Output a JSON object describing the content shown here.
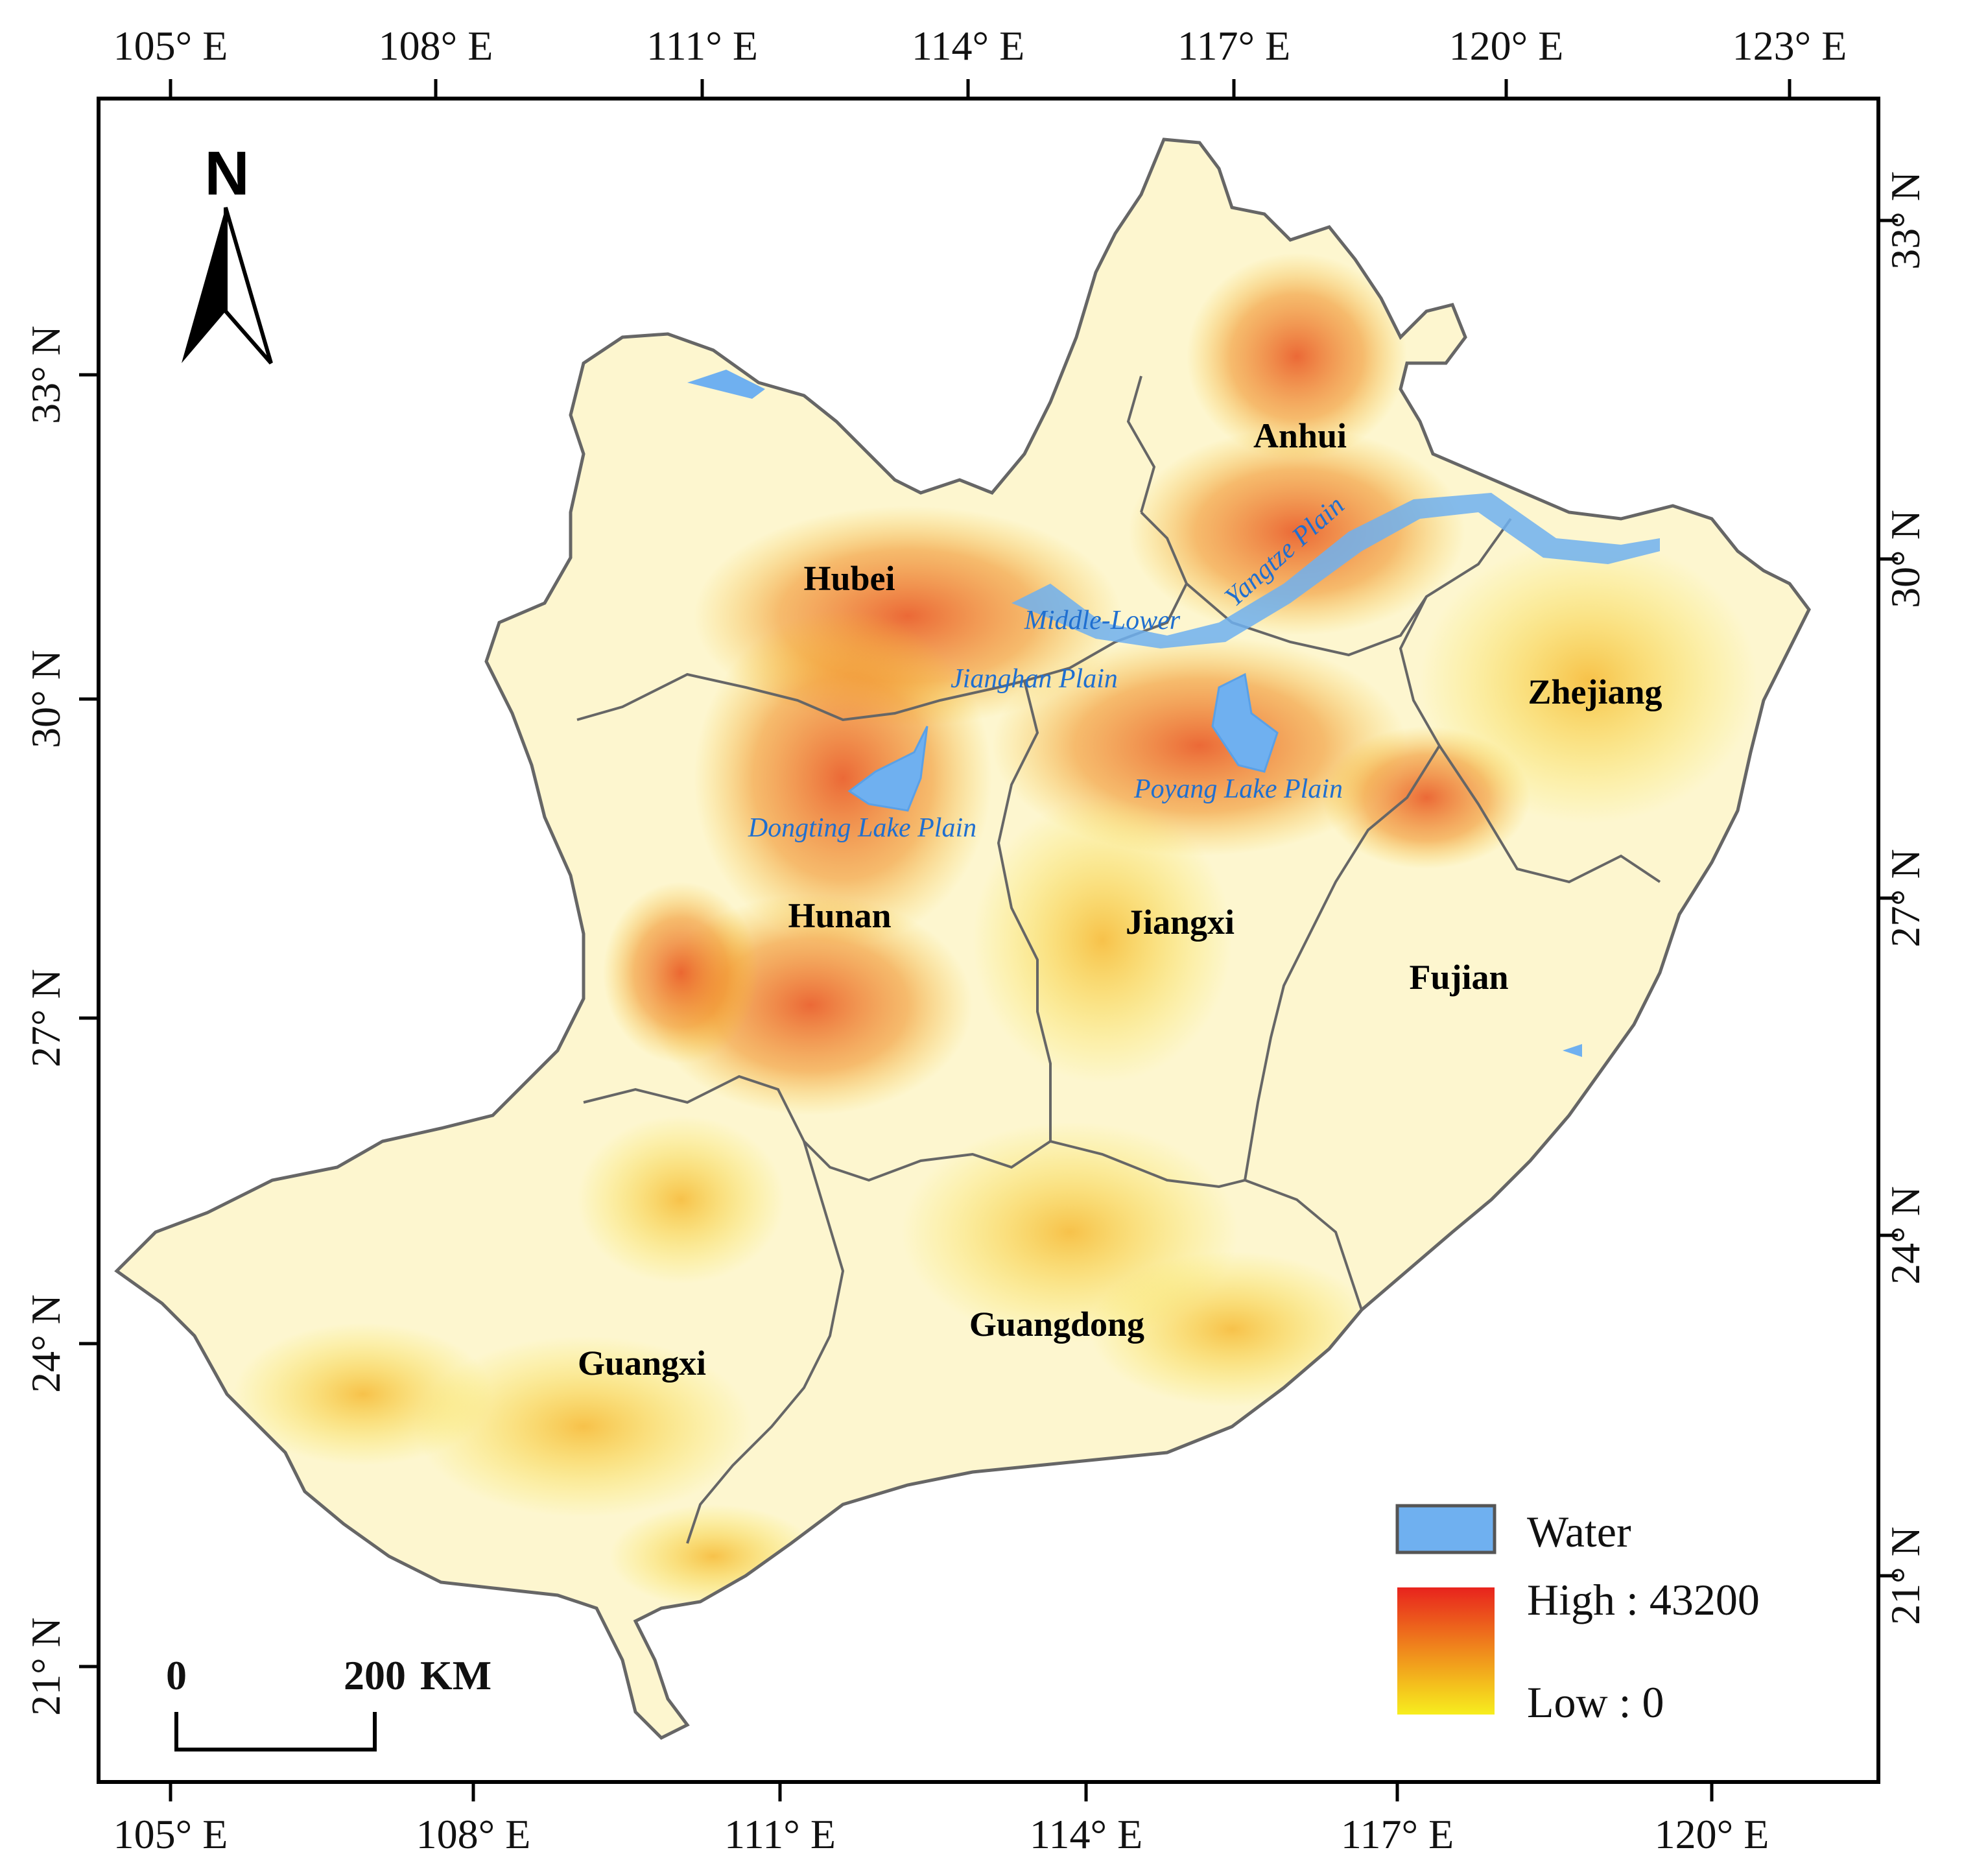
{
  "map": {
    "top_lon_ticks": [
      "105° E",
      "108° E",
      "111° E",
      "114° E",
      "117° E",
      "120° E",
      "123° E"
    ],
    "bottom_lon_ticks": [
      "105° E",
      "108° E",
      "111° E",
      "114° E",
      "117° E",
      "120° E"
    ],
    "left_lat_ticks": [
      "33° N",
      "30° N",
      "27° N",
      "24° N",
      "21° N"
    ],
    "right_lat_ticks": [
      "33° N",
      "30° N",
      "27° N",
      "24° N",
      "21° N"
    ],
    "north_label": "N",
    "provinces": {
      "anhui": "Anhui",
      "hubei": "Hubei",
      "zhejiang": "Zhejiang",
      "hunan": "Hunan",
      "jiangxi": "Jiangxi",
      "fujian": "Fujian",
      "guangdong": "Guangdong",
      "guangxi": "Guangxi"
    },
    "plains": {
      "middle_lower": "Middle-Lower",
      "yangtze": "Yangtze Plain",
      "jianghan": "Jianghan Plain",
      "poyang": "Poyang Lake Plain",
      "dongting": "Dongting Lake Plain"
    },
    "legend": {
      "water": "Water",
      "high": "High : 43200",
      "low": "Low : 0",
      "water_color": "#6fb0f0",
      "high_color": "#e8231d",
      "low_color": "#f7ee1e"
    },
    "scale_bar": {
      "start": "0",
      "end": "200",
      "unit": "KM"
    }
  }
}
